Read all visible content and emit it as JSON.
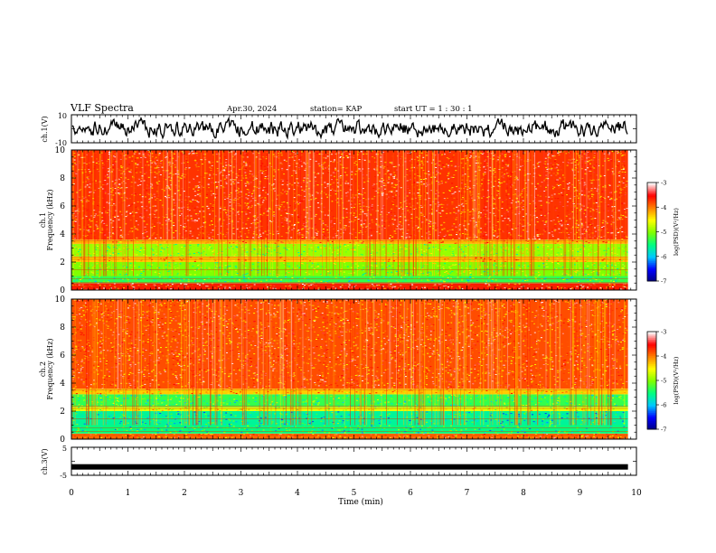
{
  "header": {
    "title": "VLF Spectra",
    "date": "Apr.30, 2024",
    "station": "station= KAP",
    "start": "start  UT  =   1 : 30 : 1"
  },
  "chart_data": [
    {
      "type": "line",
      "panel": "ch1-waveform",
      "ylabel": "ch.1(V)",
      "ylim": [
        -10,
        10
      ],
      "yticks": [
        "10",
        "-10"
      ],
      "xlim": [
        0,
        10
      ],
      "series_color": "#000000",
      "description_values": {
        "baseline": 0,
        "typical_range": [
          -6,
          6
        ]
      }
    },
    {
      "type": "heatmap",
      "panel": "ch1-spectrogram",
      "ylabel_channel": "ch.1",
      "ylabel": "Frequency (kHz)",
      "ylim": [
        0,
        10
      ],
      "yticks": [
        "0",
        "2",
        "4",
        "6",
        "8",
        "10"
      ],
      "xlim": [
        0,
        9.8
      ],
      "bands": [
        {
          "from": 0,
          "to": 0.5,
          "level": -3.6
        },
        {
          "from": 0.5,
          "to": 1.0,
          "level": -5.3
        },
        {
          "from": 1.0,
          "to": 2.0,
          "level": -5.0
        },
        {
          "from": 2.0,
          "to": 2.4,
          "level": -4.3
        },
        {
          "from": 2.4,
          "to": 3.3,
          "level": -4.9
        },
        {
          "from": 3.3,
          "to": 3.6,
          "level": -4.2
        },
        {
          "from": 3.6,
          "to": 10,
          "level": -3.7
        }
      ],
      "colorbar": {
        "label": "log(PSD)(V²/Hz)",
        "ticks": [
          "-3",
          "-4",
          "-5",
          "-6",
          "-7"
        ],
        "range": [
          -7,
          -3
        ]
      }
    },
    {
      "type": "heatmap",
      "panel": "ch2-spectrogram",
      "ylabel_channel": "ch.2",
      "ylabel": "Frequency (kHz)",
      "ylim": [
        0,
        10
      ],
      "yticks": [
        "0",
        "2",
        "4",
        "6",
        "8",
        "10"
      ],
      "xlim": [
        0,
        9.8
      ],
      "bands": [
        {
          "from": 0,
          "to": 0.4,
          "level": -3.9
        },
        {
          "from": 0.4,
          "to": 1.0,
          "level": -5.5
        },
        {
          "from": 1.0,
          "to": 2.0,
          "level": -5.6
        },
        {
          "from": 2.0,
          "to": 2.3,
          "level": -4.6
        },
        {
          "from": 2.3,
          "to": 3.2,
          "level": -5.3
        },
        {
          "from": 3.2,
          "to": 3.6,
          "level": -4.3
        },
        {
          "from": 3.6,
          "to": 10,
          "level": -3.8
        }
      ],
      "colorbar": {
        "label": "log(PSD)(V²/Hz)",
        "ticks": [
          "-3",
          "-4",
          "-5",
          "-6",
          "-7"
        ],
        "range": [
          -7,
          -3
        ]
      }
    },
    {
      "type": "line",
      "panel": "ch3-waveform",
      "ylabel": "ch.3(V)",
      "ylim": [
        -5,
        5
      ],
      "yticks": [
        "5",
        "-5"
      ],
      "xlim": [
        0,
        10
      ],
      "series_color": "#000000",
      "constant_value": -2
    }
  ],
  "xaxis": {
    "label": "Time (min)",
    "ticks": [
      "0",
      "1",
      "2",
      "3",
      "4",
      "5",
      "6",
      "7",
      "8",
      "9",
      "10"
    ]
  },
  "colors": {
    "scale": [
      "#000080",
      "#0000ff",
      "#00c8ff",
      "#00ff80",
      "#80ff00",
      "#ffff00",
      "#ff8000",
      "#ff0000",
      "#ffffff"
    ]
  }
}
